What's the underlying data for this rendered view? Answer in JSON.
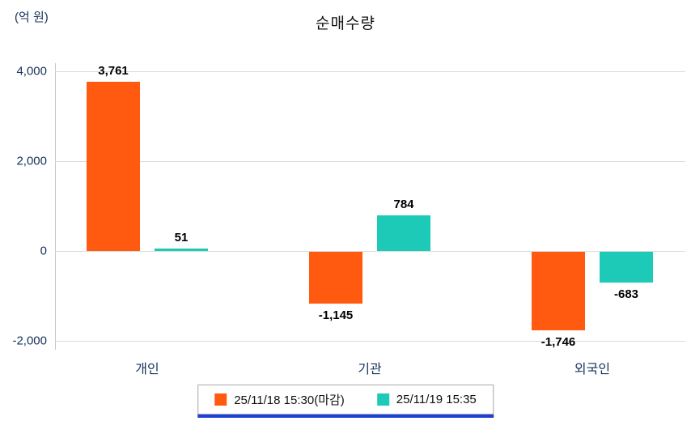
{
  "chart_data": {
    "type": "bar",
    "title": "순매수량",
    "unit_label": "(억 원)",
    "categories": [
      "개인",
      "기관",
      "외국인"
    ],
    "series": [
      {
        "name": "25/11/18 15:30(마감)",
        "color": "#ff5a10",
        "values": [
          3761,
          -1145,
          -1746
        ]
      },
      {
        "name": "25/11/19 15:35",
        "color": "#1dc9b7",
        "values": [
          51,
          784,
          -683
        ]
      }
    ],
    "y_ticks": [
      4000,
      2000,
      0,
      -2000
    ],
    "ylim": [
      -2400,
      4400
    ],
    "grid": true,
    "legend_position": "bottom"
  }
}
